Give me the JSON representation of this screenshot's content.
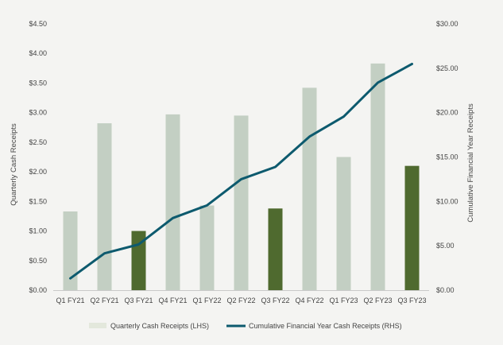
{
  "chart_data": {
    "type": "bar",
    "title": "",
    "categories": [
      "Q1 FY21",
      "Q2 FY21",
      "Q3 FY21",
      "Q4 FY21",
      "Q1 FY22",
      "Q2 FY22",
      "Q3 FY22",
      "Q4 FY22",
      "Q1 FY23",
      "Q2 FY23",
      "Q3 FY23"
    ],
    "series": [
      {
        "name": "Quarterly Cash Receipts (LHS)",
        "type": "bar",
        "axis": "left",
        "values": [
          1.33,
          2.82,
          1.0,
          2.97,
          1.43,
          2.95,
          1.38,
          3.42,
          2.25,
          3.83,
          2.1
        ],
        "colors": [
          "#c3cfc3",
          "#c3cfc3",
          "#4f6a2f",
          "#c3cfc3",
          "#c3cfc3",
          "#c3cfc3",
          "#4f6a2f",
          "#c3cfc3",
          "#c3cfc3",
          "#c3cfc3",
          "#4f6a2f"
        ]
      },
      {
        "name": "Cumulative Financial Year Cash Receipts (RHS)",
        "type": "line",
        "axis": "right",
        "color": "#0d5a6e",
        "values": [
          1.33,
          4.15,
          5.15,
          8.12,
          9.55,
          12.5,
          13.88,
          17.3,
          19.55,
          23.38,
          25.48
        ]
      }
    ],
    "ylabel": "Quarterly Cash Receipts",
    "ylabel_right": "Cumulative Financial Year Receipts",
    "ylim": [
      0,
      4.5
    ],
    "ylim_right": [
      0,
      30
    ],
    "yticks": [
      "$0.00",
      "$0.50",
      "$1.00",
      "$1.50",
      "$2.00",
      "$2.50",
      "$3.00",
      "$3.50",
      "$4.00",
      "$4.50"
    ],
    "yticks_right": [
      "$0.00",
      "$5.00",
      "$10.00",
      "$15.00",
      "$20.00",
      "$25.00",
      "$30.00"
    ],
    "grid": false,
    "legend_position": "bottom",
    "legend_bar_color": "#e3e8dc"
  }
}
